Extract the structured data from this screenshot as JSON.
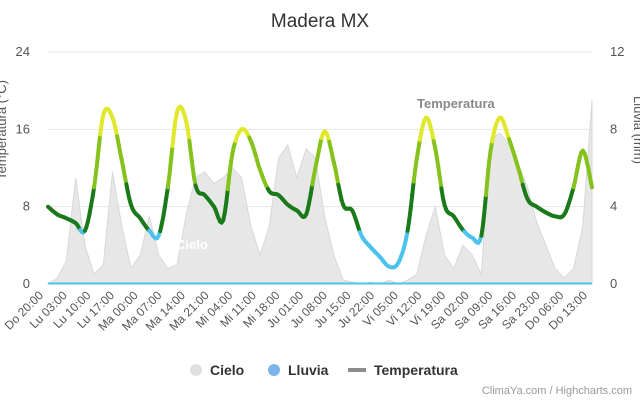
{
  "chart_data": {
    "type": "line",
    "title": "Madera MX",
    "y_left_label": "Temperatura (°C)",
    "y_right_label": "Lluvia (mm)",
    "y_left_range": [
      0,
      24
    ],
    "y_left_ticks": [
      "0",
      "8",
      "16",
      "24"
    ],
    "y_right_range": [
      0,
      12
    ],
    "y_right_ticks": [
      "0",
      "4",
      "8",
      "12"
    ],
    "x_tick_labels": [
      "Do 20:00",
      "Lu 03:00",
      "Lu 10:00",
      "Lu 17:00",
      "Ma 00:00",
      "Ma 07:00",
      "Ma 14:00",
      "Ma 21:00",
      "Mi 04:00",
      "Mi 11:00",
      "Mi 18:00",
      "Ju 01:00",
      "Ju 08:00",
      "Ju 15:00",
      "Ju 22:00",
      "Vi 05:00",
      "Vi 12:00",
      "Vi 19:00",
      "Sa 02:00",
      "Sa 09:00",
      "Sa 16:00",
      "Sa 23:00",
      "Do 06:00",
      "Do 13:00"
    ],
    "grid": true,
    "legend_position": "bottom",
    "series": [
      {
        "name": "Temperatura",
        "legend_color": "#8c8c8c",
        "color_scale": [
          {
            "max": 5.5,
            "color": "#4cc3ec"
          },
          {
            "max": 10,
            "color": "#1a7a1a"
          },
          {
            "max": 15,
            "color": "#86c21c"
          },
          {
            "max": 99,
            "color": "#e1e72a"
          }
        ],
        "values": [
          8.0,
          7.2,
          6.8,
          6.3,
          5.5,
          10.0,
          17.5,
          17.2,
          12.8,
          8.2,
          6.8,
          5.5,
          5.0,
          10.0,
          17.8,
          16.8,
          10.2,
          9.2,
          8.0,
          6.6,
          13.5,
          16.0,
          14.8,
          11.8,
          9.6,
          9.2,
          8.2,
          7.6,
          7.2,
          12.0,
          15.8,
          12.6,
          8.2,
          7.6,
          5.0,
          3.8,
          2.8,
          1.8,
          2.2,
          5.5,
          13.0,
          17.2,
          14.0,
          8.2,
          7.0,
          5.6,
          4.8,
          5.0,
          13.8,
          17.2,
          15.0,
          12.0,
          8.8,
          8.0,
          7.4,
          7.0,
          7.2,
          10.0,
          13.8,
          10.0
        ]
      },
      {
        "name": "Lluvia",
        "color": "#4cc3ec",
        "legend_color": "#7cb5ec",
        "values": [
          0,
          0,
          0,
          0,
          0,
          0,
          0,
          0,
          0,
          0,
          0,
          0,
          0,
          0,
          0,
          0,
          0,
          0,
          0,
          0,
          0,
          0,
          0,
          0,
          0,
          0,
          0,
          0,
          0,
          0,
          0,
          0,
          0,
          0,
          0,
          0,
          0,
          0,
          0,
          0,
          0,
          0,
          0,
          0,
          0,
          0,
          0,
          0,
          0,
          0,
          0,
          0,
          0,
          0,
          0,
          0,
          0,
          0,
          0,
          0
        ]
      },
      {
        "name": "Cielo",
        "color": "#e3e3e3",
        "legend_color": "#e0e0e0",
        "values": [
          0,
          0.3,
          1.2,
          5.5,
          2.0,
          0.5,
          1.0,
          5.8,
          3.0,
          0.8,
          1.5,
          3.5,
          1.5,
          0.8,
          1.0,
          3.6,
          5.5,
          5.8,
          5.2,
          5.5,
          6.0,
          5.5,
          3.0,
          1.5,
          3.0,
          6.5,
          7.2,
          5.5,
          7.0,
          6.5,
          3.5,
          1.5,
          0.2,
          0.1,
          0,
          0.1,
          0,
          0.2,
          0,
          0.2,
          0.5,
          2.5,
          4.0,
          1.5,
          0.8,
          2.0,
          1.5,
          0.5,
          7.5,
          7.8,
          7.2,
          6.2,
          5.0,
          3.2,
          2.0,
          0.8,
          0.3,
          0.8,
          3.0,
          9.5
        ]
      }
    ],
    "annotations": [
      {
        "text": "Temperatura",
        "series": "Temperatura"
      },
      {
        "text": "Cielo",
        "series": "Cielo"
      }
    ]
  },
  "credits": "ClimaYa.com / Highcharts.com"
}
